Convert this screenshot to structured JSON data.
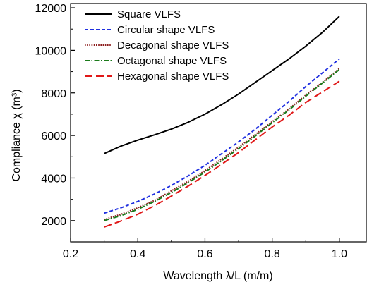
{
  "chart_data": {
    "type": "line",
    "title": "",
    "xlabel": "Wavelength λ/L (m/m)",
    "ylabel": "Compliance χ (m³)",
    "xlim": [
      0.2,
      1.08
    ],
    "ylim": [
      1000,
      12200
    ],
    "xticks": [
      "0.2",
      "0.4",
      "0.6",
      "0.8",
      "1.0"
    ],
    "yticks": [
      "2000",
      "4000",
      "6000",
      "8000",
      "10000",
      "12000"
    ],
    "grid": false,
    "legend_position": "top-left",
    "series": [
      {
        "name": "Square VLFS",
        "color": "#000000",
        "dash": "solid",
        "x": [
          0.3,
          0.35,
          0.4,
          0.45,
          0.5,
          0.55,
          0.6,
          0.65,
          0.7,
          0.75,
          0.8,
          0.85,
          0.9,
          0.95,
          1.0
        ],
        "y": [
          5150,
          5500,
          5780,
          6030,
          6300,
          6620,
          7000,
          7450,
          7950,
          8500,
          9050,
          9600,
          10200,
          10850,
          11600
        ]
      },
      {
        "name": "Circular shape VLFS",
        "color": "#1f2fe0",
        "dash": "short",
        "x": [
          0.3,
          0.35,
          0.4,
          0.45,
          0.5,
          0.55,
          0.6,
          0.65,
          0.7,
          0.75,
          0.8,
          0.85,
          0.9,
          0.95,
          1.0
        ],
        "y": [
          2350,
          2600,
          2900,
          3250,
          3650,
          4100,
          4600,
          5150,
          5700,
          6300,
          6950,
          7600,
          8300,
          8950,
          9600
        ]
      },
      {
        "name": "Decagonal shape VLFS",
        "color": "#8b1a1a",
        "dash": "dot",
        "x": [
          0.3,
          0.35,
          0.4,
          0.45,
          0.5,
          0.55,
          0.6,
          0.65,
          0.7,
          0.75,
          0.8,
          0.85,
          0.9,
          0.95,
          1.0
        ],
        "y": [
          2050,
          2300,
          2600,
          2950,
          3400,
          3850,
          4350,
          4900,
          5450,
          6050,
          6650,
          7250,
          7900,
          8500,
          9150
        ]
      },
      {
        "name": "Octagonal shape VLFS",
        "color": "#1a7a1a",
        "dash": "dashdot",
        "x": [
          0.3,
          0.35,
          0.4,
          0.45,
          0.5,
          0.55,
          0.6,
          0.65,
          0.7,
          0.75,
          0.8,
          0.85,
          0.9,
          0.95,
          1.0
        ],
        "y": [
          2000,
          2230,
          2530,
          2900,
          3320,
          3780,
          4280,
          4820,
          5380,
          5980,
          6600,
          7200,
          7850,
          8470,
          9100
        ]
      },
      {
        "name": "Hexagonal shape VLFS",
        "color": "#e01818",
        "dash": "long",
        "x": [
          0.3,
          0.35,
          0.4,
          0.45,
          0.5,
          0.55,
          0.6,
          0.65,
          0.7,
          0.75,
          0.8,
          0.85,
          0.9,
          0.95,
          1.0
        ],
        "y": [
          1700,
          1980,
          2300,
          2700,
          3150,
          3620,
          4120,
          4650,
          5200,
          5800,
          6400,
          6950,
          7550,
          8050,
          8550
        ]
      }
    ]
  }
}
